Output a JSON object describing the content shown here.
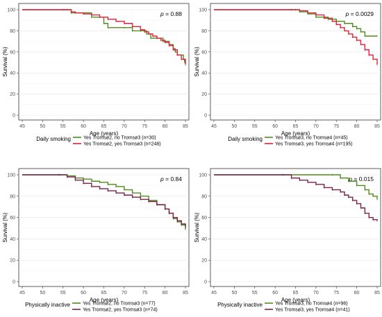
{
  "chart_data": [
    {
      "type": "line",
      "panel": "top-left",
      "p_value_label": "p",
      "p_value_text": "= 0.88",
      "xlabel": "Age (years)",
      "ylabel": "Survival (%)",
      "xlim": [
        45,
        85
      ],
      "ylim": [
        0,
        100
      ],
      "x_ticks": [
        "45",
        "50",
        "55",
        "60",
        "65",
        "70",
        "75",
        "80",
        "85"
      ],
      "y_ticks": [
        "0",
        "20",
        "40",
        "60",
        "80",
        "100"
      ],
      "grid": true,
      "legend_title": "Daily smoking",
      "series": [
        {
          "name": "Yes Tromsø2, no Tromsø3 (n=30)",
          "color": "#4d8c1a",
          "x": [
            45,
            56,
            57,
            62,
            65,
            66,
            70,
            72,
            74,
            75.5,
            76.5,
            78,
            79.5,
            81,
            82,
            82.5,
            83,
            84.5,
            84.8
          ],
          "y": [
            100,
            100,
            97,
            93,
            87,
            83,
            83,
            80,
            80,
            77,
            73,
            73,
            70,
            67,
            63,
            60,
            57,
            53,
            50
          ]
        },
        {
          "name": "Yes Tromsø2, yes Tromsø3 (n=248)",
          "color": "#e0203a",
          "x": [
            45,
            55,
            57,
            58,
            60,
            62,
            64,
            66,
            68,
            70,
            72,
            74,
            75,
            76,
            77,
            78,
            79,
            80,
            81,
            82,
            83,
            84,
            85
          ],
          "y": [
            100,
            100,
            98,
            97,
            96,
            95,
            93,
            91,
            89,
            87,
            84,
            81,
            79,
            77,
            75,
            73,
            71,
            69,
            66,
            62,
            57,
            53,
            48
          ]
        }
      ]
    },
    {
      "type": "line",
      "panel": "top-right",
      "p_value_label": "p",
      "p_value_text": "= 0.0029",
      "xlabel": "Age (years)",
      "ylabel": "Survival (%)",
      "xlim": [
        45,
        85
      ],
      "ylim": [
        0,
        100
      ],
      "x_ticks": [
        "45",
        "50",
        "55",
        "60",
        "65",
        "70",
        "75",
        "80",
        "85"
      ],
      "y_ticks": [
        "0",
        "20",
        "40",
        "60",
        "80",
        "100"
      ],
      "grid": true,
      "legend_title": "Daily smoking",
      "series": [
        {
          "name": "Yes Tromsø3, no Tromsø4 (n=45)",
          "color": "#4d8c1a",
          "x": [
            45,
            65,
            66,
            68,
            70,
            73,
            75,
            77,
            79,
            80,
            81,
            82,
            85
          ],
          "y": [
            100,
            100,
            98,
            96,
            93,
            91,
            89,
            87,
            84,
            82,
            79,
            75,
            75
          ]
        },
        {
          "name": "Yes Tromsø3, yes Tromsø4 (n=195)",
          "color": "#e0203a",
          "x": [
            45,
            64,
            66,
            68,
            70,
            72,
            74,
            75,
            76,
            77,
            78,
            79,
            80,
            81,
            82,
            83,
            84,
            85
          ],
          "y": [
            100,
            100,
            99,
            97,
            95,
            92,
            89,
            86,
            83,
            80,
            77,
            74,
            71,
            67,
            62,
            57,
            53,
            48
          ]
        }
      ]
    },
    {
      "type": "line",
      "panel": "bottom-left",
      "p_value_label": "p",
      "p_value_text": "= 0.84",
      "xlabel": "Age (years)",
      "ylabel": "Survival (%)",
      "xlim": [
        45,
        85
      ],
      "ylim": [
        0,
        100
      ],
      "x_ticks": [
        "45",
        "50",
        "55",
        "60",
        "65",
        "70",
        "75",
        "80",
        "85"
      ],
      "y_ticks": [
        "0",
        "20",
        "40",
        "60",
        "80",
        "100"
      ],
      "grid": true,
      "legend_title": "Physically inactive",
      "series": [
        {
          "name": "Yes Tromsø2, no Tromsø3 (n=77)",
          "color": "#4d8c1a",
          "x": [
            45,
            54,
            56,
            58,
            60,
            62,
            64,
            66,
            68,
            70,
            72,
            74,
            76,
            78,
            80,
            81,
            82,
            83,
            84,
            85
          ],
          "y": [
            100,
            100,
            99,
            97,
            96,
            94,
            93,
            91,
            89,
            86,
            83,
            80,
            76,
            72,
            68,
            64,
            59,
            56,
            53,
            49
          ]
        },
        {
          "name": "Yes Tromsø2, yes Tromsø3 (n=74)",
          "color": "#7a2148",
          "x": [
            45,
            54,
            56,
            58,
            60,
            62,
            64,
            66,
            68,
            70,
            72,
            74,
            76,
            78,
            80,
            81,
            82,
            83,
            84,
            85
          ],
          "y": [
            100,
            100,
            98,
            95,
            92,
            89,
            87,
            85,
            83,
            81,
            79,
            77,
            75,
            72,
            68,
            64,
            60,
            57,
            54,
            51
          ]
        }
      ]
    },
    {
      "type": "line",
      "panel": "bottom-right",
      "p_value_label": "p",
      "p_value_text": "= 0.015",
      "xlabel": "Age (years)",
      "ylabel": "Survival (%)",
      "xlim": [
        45,
        85
      ],
      "ylim": [
        0,
        100
      ],
      "x_ticks": [
        "45",
        "50",
        "55",
        "60",
        "65",
        "70",
        "75",
        "80",
        "85"
      ],
      "y_ticks": [
        "0",
        "20",
        "40",
        "60",
        "80",
        "100"
      ],
      "grid": true,
      "legend_title": "Physically inactive",
      "series": [
        {
          "name": "Yes Tromsø3, no Tromsø4 (n=96)",
          "color": "#4d8c1a",
          "x": [
            45,
            74,
            76,
            78,
            80,
            82,
            83,
            84,
            85
          ],
          "y": [
            100,
            100,
            97,
            94,
            90,
            86,
            82,
            80,
            77
          ]
        },
        {
          "name": "Yes Tromsø3, yes Tromsø4 (n=41)",
          "color": "#7a2148",
          "x": [
            45,
            62,
            64,
            66,
            68,
            70,
            72,
            74,
            76,
            77,
            78,
            79,
            80,
            81,
            82,
            83,
            84,
            85
          ],
          "y": [
            100,
            100,
            97,
            95,
            93,
            91,
            88,
            86,
            84,
            81,
            79,
            76,
            73,
            69,
            64,
            60,
            58,
            57
          ]
        }
      ]
    }
  ]
}
